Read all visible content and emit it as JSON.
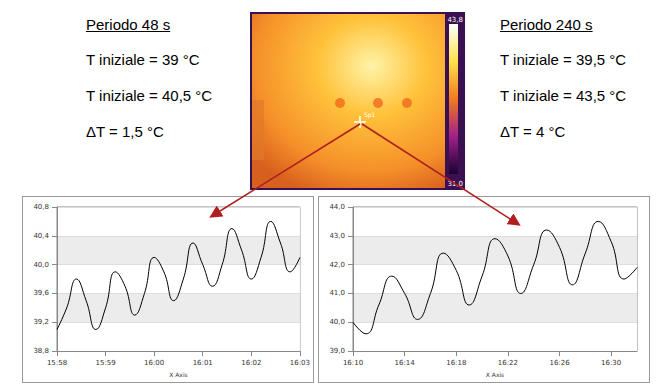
{
  "panels": [
    {
      "title": "Periodo 48 s",
      "lines": [
        "T iniziale = 39 °C",
        "T iniziale = 40,5 °C",
        "ΔT  = 1,5 °C"
      ]
    },
    {
      "title": "Periodo 240 s",
      "lines": [
        "T iniziale = 39,5 °C",
        "T iniziale = 43,5 °C",
        "ΔT  = 4 °C"
      ]
    }
  ],
  "thermal_image": {
    "scale_labels": [
      "43,8",
      "31,0"
    ],
    "spot_label": "Sp1"
  },
  "chart_data": [
    {
      "type": "line",
      "x_label": "X Axis",
      "color": "#000000",
      "grid": true,
      "x": [
        0,
        12,
        24,
        36,
        48,
        60,
        72,
        84,
        96,
        108,
        120,
        132,
        144,
        156,
        168,
        180,
        192,
        204,
        216,
        228,
        240,
        252,
        264,
        276,
        288,
        300
      ],
      "values": [
        39.1,
        39.4,
        39.8,
        39.5,
        39.1,
        39.4,
        39.9,
        39.7,
        39.3,
        39.6,
        40.1,
        39.9,
        39.5,
        39.8,
        40.3,
        40.0,
        39.7,
        40.0,
        40.5,
        40.2,
        39.8,
        40.1,
        40.6,
        40.3,
        39.9,
        40.1
      ],
      "xlim": [
        0,
        300
      ],
      "xticks": [
        {
          "value": 0,
          "label": "15:58"
        },
        {
          "value": 60,
          "label": "15:59"
        },
        {
          "value": 120,
          "label": "16:00"
        },
        {
          "value": 180,
          "label": "16:01"
        },
        {
          "value": 240,
          "label": "16:02"
        },
        {
          "value": 300,
          "label": "16:03"
        }
      ],
      "ylim": [
        38.8,
        40.8
      ],
      "yticks": [
        {
          "value": 38.8,
          "label": "38,8"
        },
        {
          "value": 39.2,
          "label": "39,2"
        },
        {
          "value": 39.6,
          "label": "39,6"
        },
        {
          "value": 40.0,
          "label": "40,0"
        },
        {
          "value": 40.4,
          "label": "40,4"
        },
        {
          "value": 40.8,
          "label": "40,8"
        }
      ]
    },
    {
      "type": "line",
      "x_label": "X Axis",
      "color": "#000000",
      "grid": true,
      "x": [
        0,
        60,
        120,
        180,
        240,
        300,
        360,
        420,
        480,
        540,
        600,
        660,
        720,
        780,
        840,
        900,
        960,
        1020,
        1080,
        1140,
        1200,
        1260,
        1320
      ],
      "values": [
        40.0,
        39.6,
        40.6,
        41.6,
        41.0,
        40.1,
        41.0,
        42.4,
        41.8,
        40.6,
        41.6,
        42.9,
        42.3,
        41.0,
        42.0,
        43.2,
        42.6,
        41.3,
        42.4,
        43.5,
        42.8,
        41.5,
        41.9
      ],
      "xlim": [
        0,
        1320
      ],
      "xticks": [
        {
          "value": 0,
          "label": "16:10"
        },
        {
          "value": 240,
          "label": "16:14"
        },
        {
          "value": 480,
          "label": "16:18"
        },
        {
          "value": 720,
          "label": "16:22"
        },
        {
          "value": 960,
          "label": "16:26"
        },
        {
          "value": 1200,
          "label": "16:30"
        }
      ],
      "ylim": [
        39.0,
        44.0
      ],
      "yticks": [
        {
          "value": 39.0,
          "label": "39,0"
        },
        {
          "value": 40.0,
          "label": "40,0"
        },
        {
          "value": 41.0,
          "label": "41,0"
        },
        {
          "value": 42.0,
          "label": "42,0"
        },
        {
          "value": 43.0,
          "label": "43,0"
        },
        {
          "value": 44.0,
          "label": "44,0"
        }
      ]
    }
  ]
}
